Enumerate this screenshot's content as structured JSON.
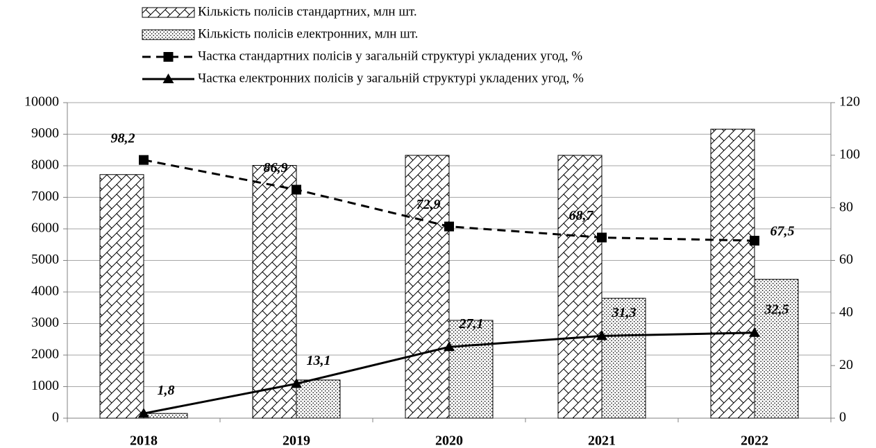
{
  "chart_data": {
    "type": "bar",
    "categories": [
      "2018",
      "2019",
      "2020",
      "2021",
      "2022"
    ],
    "series": [
      {
        "name": "Кількість полісів стандартних, млн шт.",
        "type": "bar",
        "pattern": "hatch",
        "color": "#000000",
        "values": [
          7720,
          8010,
          8330,
          8330,
          9160
        ]
      },
      {
        "name": "Кількість полісів електронних, млн шт.",
        "type": "bar",
        "pattern": "dots",
        "color": "#000000",
        "values": [
          150,
          1210,
          3100,
          3800,
          4400
        ]
      },
      {
        "name": "Частка стандартних полісів у загальній структурі укладених угод, %",
        "type": "line",
        "axis": "y2",
        "line_style": "dashed",
        "marker": "square",
        "color": "#000000",
        "values": [
          98.2,
          86.9,
          72.9,
          68.7,
          67.5
        ],
        "value_labels": [
          "98,2",
          "86,9",
          "72,9",
          "68,7",
          "67,5"
        ]
      },
      {
        "name": "Частка електронних полісів у загальній структурі укладених угод, %",
        "type": "line",
        "axis": "y2",
        "line_style": "solid",
        "marker": "triangle",
        "color": "#000000",
        "values": [
          1.8,
          13.1,
          27.1,
          31.3,
          32.5
        ],
        "value_labels": [
          "1,8",
          "13,1",
          "27,1",
          "31,3",
          "32,5"
        ]
      }
    ],
    "ylim": [
      0,
      10000
    ],
    "yticks": [
      0,
      1000,
      2000,
      3000,
      4000,
      5000,
      6000,
      7000,
      8000,
      9000,
      10000
    ],
    "y2lim": [
      0,
      120
    ],
    "y2ticks": [
      0,
      20,
      40,
      60,
      80,
      100,
      120
    ],
    "grid": true,
    "legend": "top"
  }
}
